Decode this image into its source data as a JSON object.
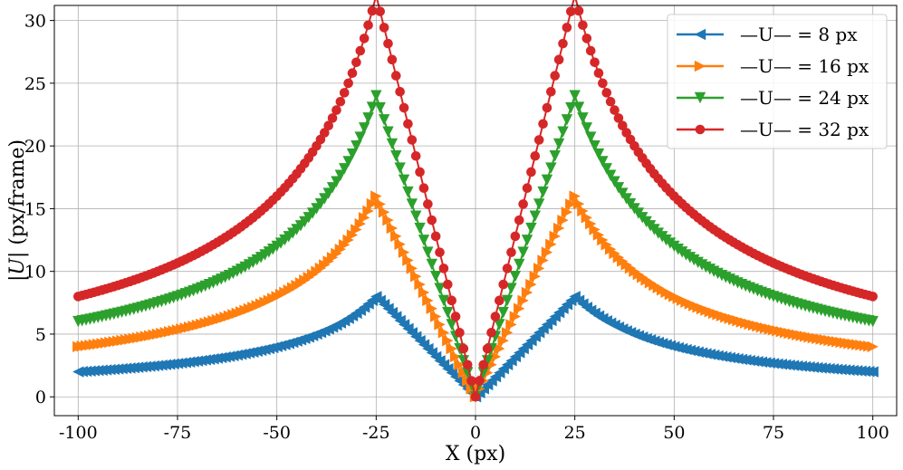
{
  "chart_data": {
    "type": "line",
    "title": "",
    "xlabel": "X (px)",
    "ylabel_prefix": "|",
    "ylabel_var": "U",
    "ylabel_suffix": "| (px/frame)",
    "xlim": [
      -106,
      106
    ],
    "ylim": [
      -1.5,
      31.2
    ],
    "x_ticks": [
      -100,
      -75,
      -50,
      -25,
      0,
      25,
      50,
      75,
      100
    ],
    "y_ticks": [
      0,
      5,
      10,
      15,
      20,
      25,
      30
    ],
    "x_tick_labels": [
      "-100",
      "-75",
      "-50",
      "-25",
      "0",
      "25",
      "50",
      "75",
      "100"
    ],
    "y_tick_labels": [
      "0",
      "5",
      "10",
      "15",
      "20",
      "25",
      "30"
    ],
    "grid": true,
    "legend_position": "top-right",
    "vortex_radius": 25,
    "x_range": [
      -100,
      100
    ],
    "n_points": 201,
    "sample_x": [
      -100,
      -75,
      -50,
      -25,
      0,
      25,
      50,
      75,
      100
    ],
    "series": [
      {
        "name": "—U— = 8 px",
        "peak": 8,
        "color": "#1f77b4",
        "marker": "triangle-left",
        "sample_values": [
          2.0,
          2.67,
          4.0,
          8.0,
          0.0,
          8.0,
          4.0,
          2.67,
          2.0
        ]
      },
      {
        "name": "—U— = 16 px",
        "peak": 16,
        "color": "#ff7f0e",
        "marker": "triangle-right",
        "sample_values": [
          4.0,
          5.33,
          8.0,
          16.0,
          0.0,
          16.0,
          8.0,
          5.33,
          4.0
        ]
      },
      {
        "name": "—U— = 24 px",
        "peak": 24,
        "color": "#2ca02c",
        "marker": "triangle-down",
        "sample_values": [
          6.0,
          8.0,
          12.0,
          24.0,
          0.0,
          24.0,
          12.0,
          8.0,
          6.0
        ]
      },
      {
        "name": "—U— = 32 px",
        "peak": 32,
        "color": "#d62728",
        "marker": "circle",
        "sample_values": [
          8.0,
          10.67,
          16.0,
          32.0,
          0.0,
          32.0,
          16.0,
          10.67,
          8.0
        ]
      }
    ]
  }
}
